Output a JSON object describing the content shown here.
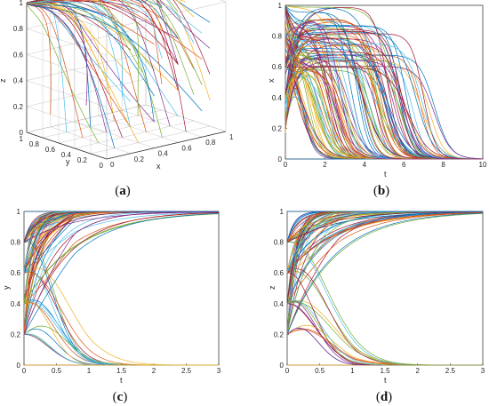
{
  "chart_data": [
    {
      "panel": "a",
      "type": "line",
      "projection": "3d",
      "caption_letter": "a",
      "xlabel": "x",
      "ylabel": "y",
      "zlabel": "z",
      "x_ticks": [
        "0",
        "0.2",
        "0.4",
        "0.6",
        "0.8",
        "1"
      ],
      "y_ticks": [
        "0",
        "0.2",
        "0.4",
        "0.6",
        "0.8",
        "1"
      ],
      "z_ticks": [
        "0",
        "0.2",
        "0.4",
        "0.6",
        "0.8",
        "1"
      ],
      "xlim": [
        0,
        1
      ],
      "ylim": [
        0,
        1
      ],
      "zlim": [
        0,
        1
      ],
      "grid": true,
      "trajectories": "evolutionary paths from initial points on a grid over the unit cube, converging to the vertex (x=0, y=1, z=1)"
    },
    {
      "panel": "b",
      "type": "line",
      "caption_letter": "b",
      "xlabel": "t",
      "ylabel": "x",
      "x_ticks": [
        "0",
        "2",
        "4",
        "6",
        "8",
        "10"
      ],
      "y_ticks": [
        "0",
        "0.2",
        "0.4",
        "0.6",
        "0.8",
        "1"
      ],
      "xlim": [
        0,
        10
      ],
      "ylim": [
        0,
        1
      ],
      "initial_values": [
        0,
        0.2,
        0.4,
        0.6,
        0.8,
        1
      ],
      "final_value": 0,
      "behavior": "x rises toward 1 then decays to 0; decay times spread between t≈0.5 and t≈7.5"
    },
    {
      "panel": "c",
      "type": "line",
      "caption_letter": "c",
      "xlabel": "t",
      "ylabel": "y",
      "x_ticks": [
        "0",
        "0.5",
        "1",
        "1.5",
        "2",
        "2.5",
        "3"
      ],
      "y_ticks": [
        "0",
        "0.2",
        "0.4",
        "0.6",
        "0.8",
        "1"
      ],
      "xlim": [
        0,
        3
      ],
      "ylim": [
        0,
        1
      ],
      "initial_values": [
        0,
        0.2,
        0.4,
        0.6,
        0.8,
        1
      ],
      "final_value": 1,
      "behavior": "most trajectories rise to 1; a subset decays to 0 before t≈2"
    },
    {
      "panel": "d",
      "type": "line",
      "caption_letter": "d",
      "xlabel": "t",
      "ylabel": "z",
      "x_ticks": [
        "0",
        "0.5",
        "1",
        "1.5",
        "2",
        "2.5",
        "3"
      ],
      "y_ticks": [
        "0",
        "0.2",
        "0.4",
        "0.6",
        "0.8",
        "1"
      ],
      "xlim": [
        0,
        3
      ],
      "ylim": [
        0,
        1
      ],
      "initial_values": [
        0,
        0.2,
        0.4,
        0.6,
        0.8,
        1
      ],
      "final_value": 1,
      "behavior": "most trajectories rise to 1; a subset decays to 0 before t≈2"
    }
  ],
  "series_colors": [
    "#0072bd",
    "#d95319",
    "#edb120",
    "#7e2f8e",
    "#77ac30",
    "#4dbeee",
    "#a2142f"
  ]
}
